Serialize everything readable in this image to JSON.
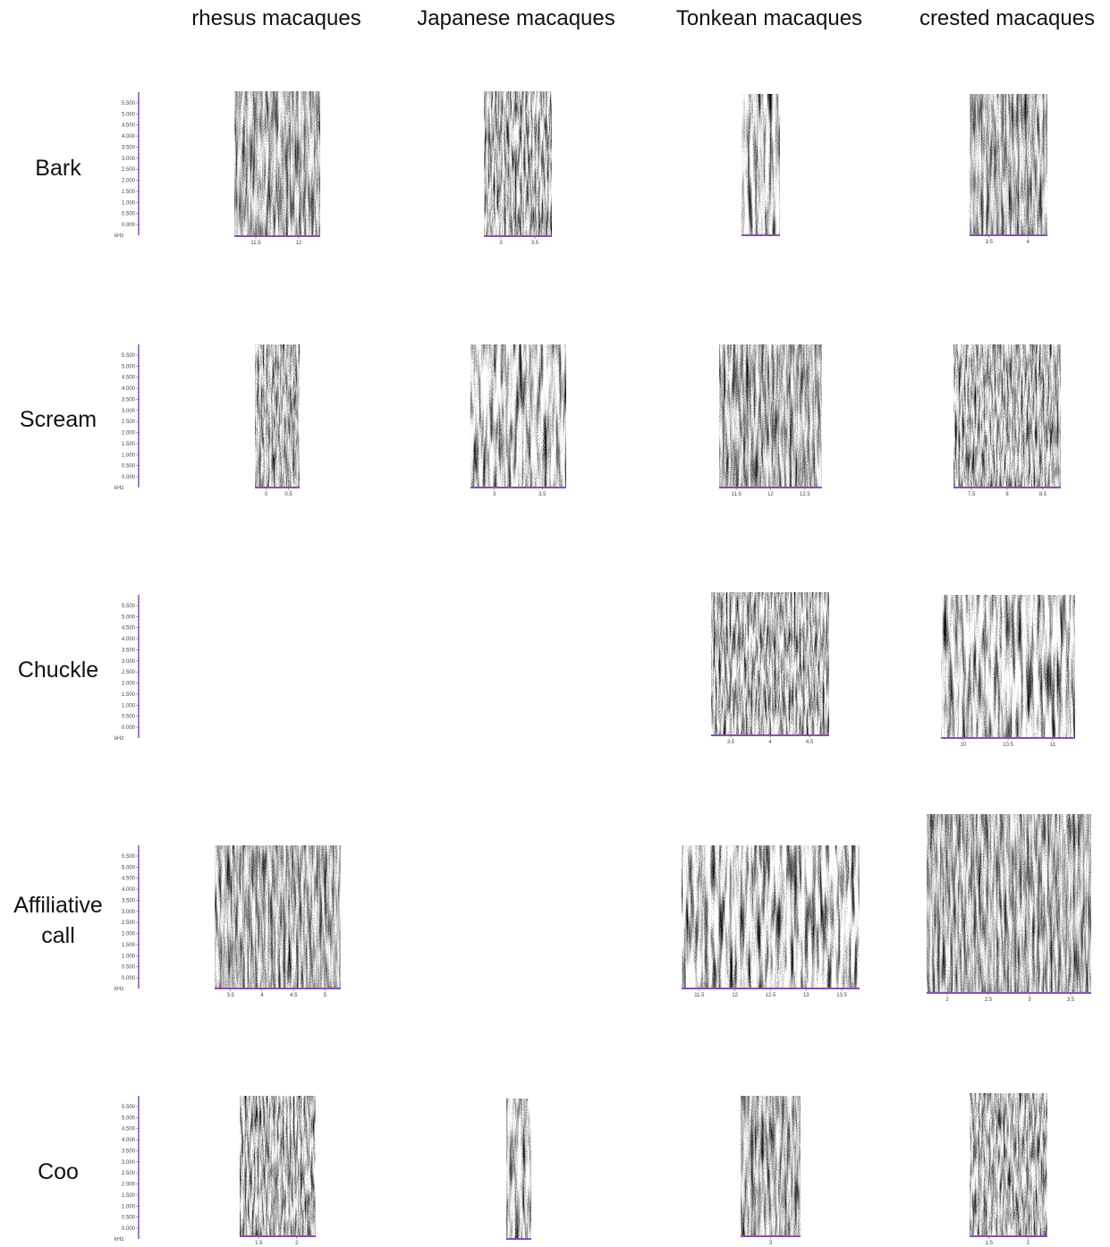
{
  "columns": [
    "rhesus macaques",
    "Japanese macaques",
    "Tonkean macaques",
    "crested macaques"
  ],
  "freq_axis": {
    "ticks": [
      "5.500",
      "5.000",
      "4.500",
      "4.000",
      "3.500",
      "3.000",
      "2.500",
      "2.000",
      "1.500",
      "1.000",
      "0.500",
      "0.000"
    ],
    "unit": "kHz"
  },
  "rows": [
    {
      "label": "Bark",
      "cells": [
        {
          "time_ticks": [
            "11.5",
            "12"
          ]
        },
        {
          "time_ticks": [
            "3",
            "3.5"
          ]
        },
        {
          "time_ticks": []
        },
        {
          "time_ticks": [
            "3.5",
            "4"
          ]
        }
      ]
    },
    {
      "label": "Scream",
      "cells": [
        {
          "time_ticks": [
            "0",
            "0.5"
          ]
        },
        {
          "time_ticks": [
            "3",
            "3.5"
          ]
        },
        {
          "time_ticks": [
            "11.5",
            "12",
            "12.5"
          ]
        },
        {
          "time_ticks": [
            "7.5",
            "8",
            "8.5"
          ]
        }
      ]
    },
    {
      "label": "Chuckle",
      "cells": [
        null,
        null,
        {
          "time_ticks": [
            "3.5",
            "4",
            "4.5"
          ]
        },
        {
          "time_ticks": [
            "10",
            "10.5",
            "11"
          ]
        }
      ]
    },
    {
      "label": "Affiliative call",
      "cells": [
        {
          "time_ticks": [
            "3.5",
            "4",
            "4.5",
            "5"
          ]
        },
        null,
        {
          "time_ticks": [
            "11.5",
            "12",
            "12.5",
            "13",
            "13.5"
          ]
        },
        {
          "time_ticks": [
            "2",
            "2.5",
            "3",
            "3.5"
          ]
        }
      ]
    },
    {
      "label": "Coo",
      "cells": [
        {
          "time_ticks": [
            "1.5",
            "2"
          ]
        },
        {
          "time_ticks": []
        },
        {
          "time_ticks": [
            "3"
          ]
        },
        {
          "time_ticks": [
            "1.5",
            "2"
          ]
        }
      ]
    }
  ]
}
